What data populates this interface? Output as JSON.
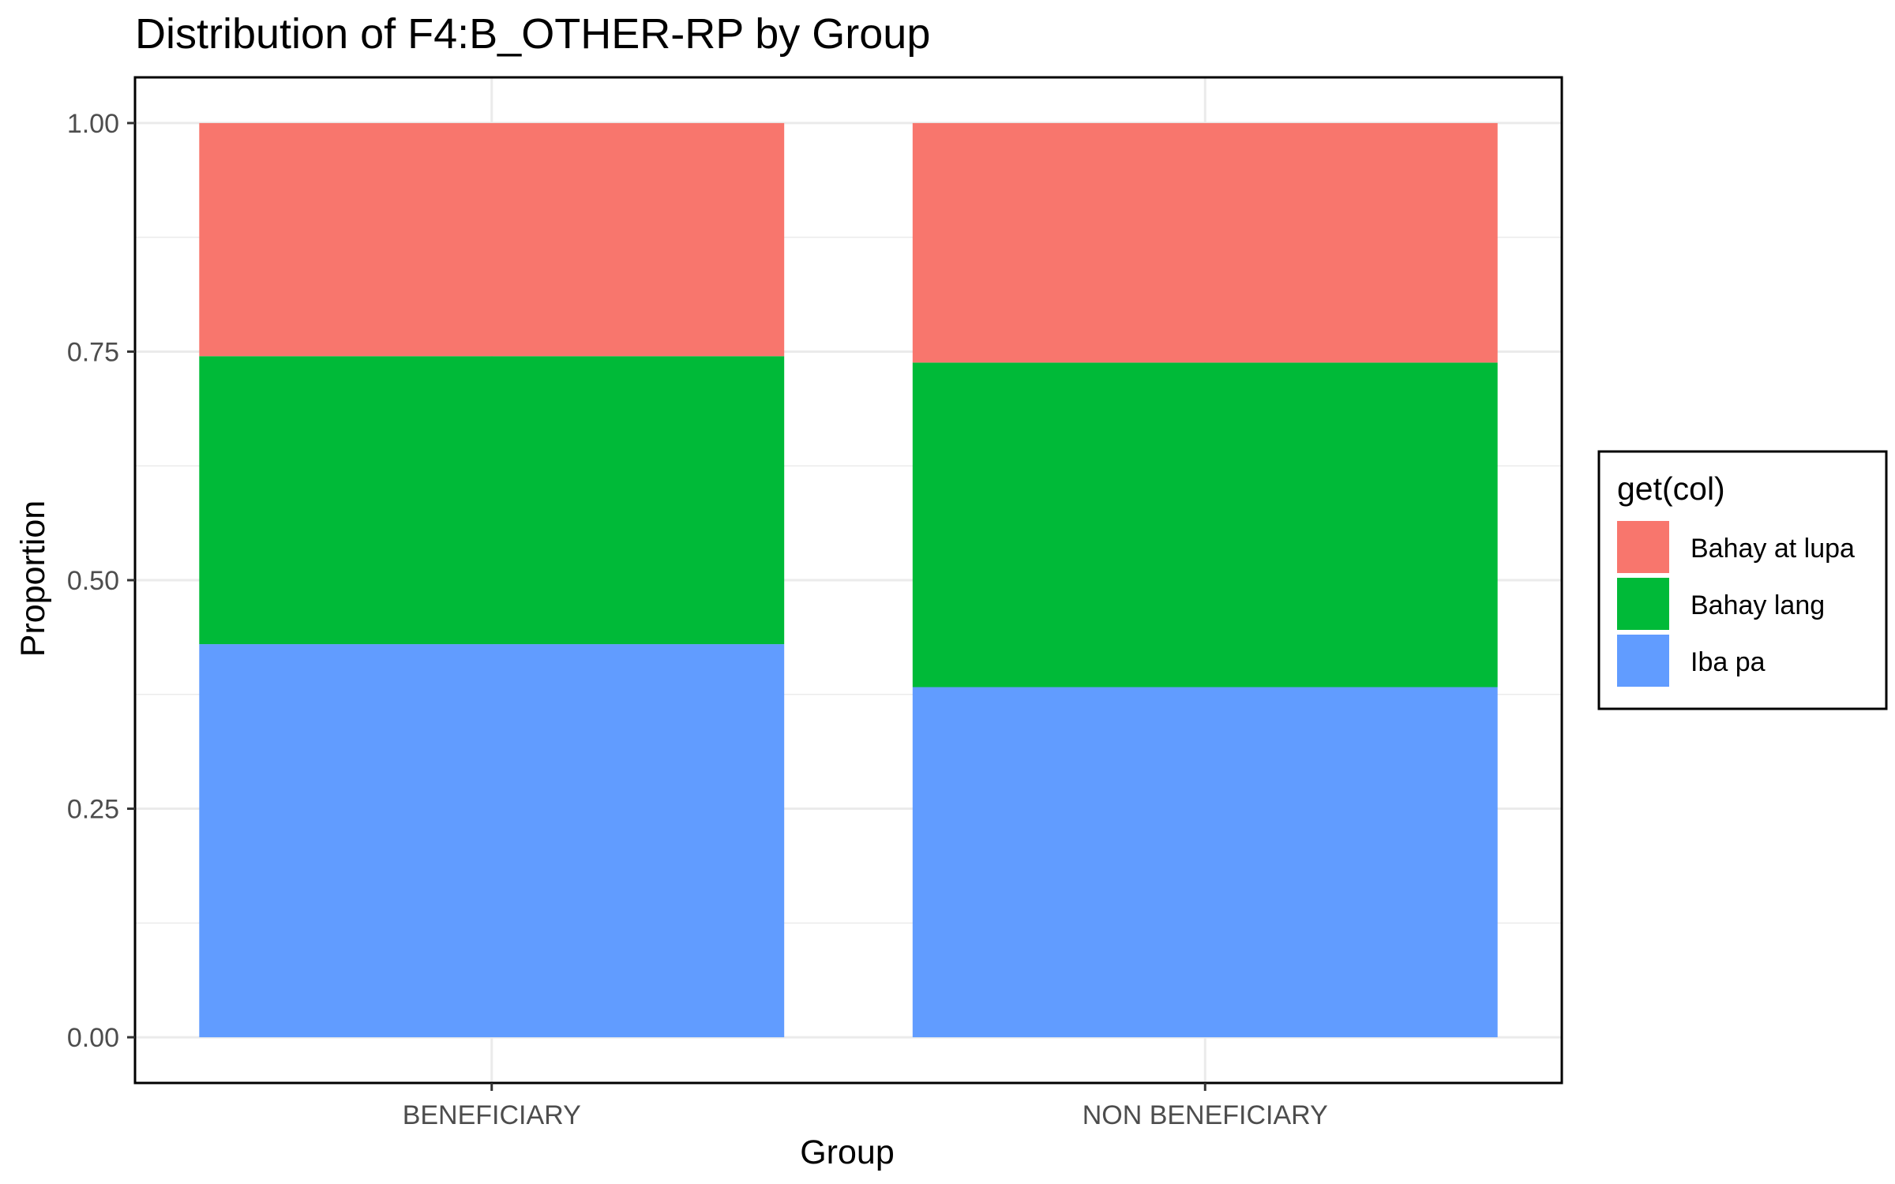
{
  "chart_data": {
    "type": "bar",
    "stacked": true,
    "title": "Distribution of F4:B_OTHER-RP by Group",
    "xlabel": "Group",
    "ylabel": "Proportion",
    "ylim": [
      -0.05,
      1.05
    ],
    "yticks": [
      0.0,
      0.25,
      0.5,
      0.75,
      1.0
    ],
    "ytick_labels": [
      "0.00",
      "0.25",
      "0.50",
      "0.75",
      "1.00"
    ],
    "grid": true,
    "categories": [
      "BENEFICIARY",
      "NON BENEFICIARY"
    ],
    "series": [
      {
        "name": "Iba pa",
        "color": "#619CFF",
        "values": [
          0.43,
          0.383
        ]
      },
      {
        "name": "Bahay lang",
        "color": "#00BA38",
        "values": [
          0.315,
          0.355
        ]
      },
      {
        "name": "Bahay at lupa",
        "color": "#F8766D",
        "values": [
          0.255,
          0.262
        ]
      }
    ],
    "legend": {
      "title": "get(col)",
      "position": "right",
      "order": [
        "Bahay at lupa",
        "Bahay lang",
        "Iba pa"
      ]
    }
  }
}
